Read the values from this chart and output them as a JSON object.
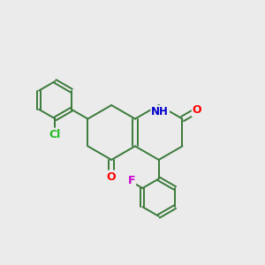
{
  "background_color": "#ebebeb",
  "bond_color": "#3a7a3a",
  "bond_width": 1.4,
  "atom_colors": {
    "O": "#ff0000",
    "N": "#0000cc",
    "Cl": "#22bb22",
    "F": "#cc00cc",
    "C": "#000000"
  },
  "figsize": [
    3.0,
    3.0
  ],
  "dpi": 100
}
